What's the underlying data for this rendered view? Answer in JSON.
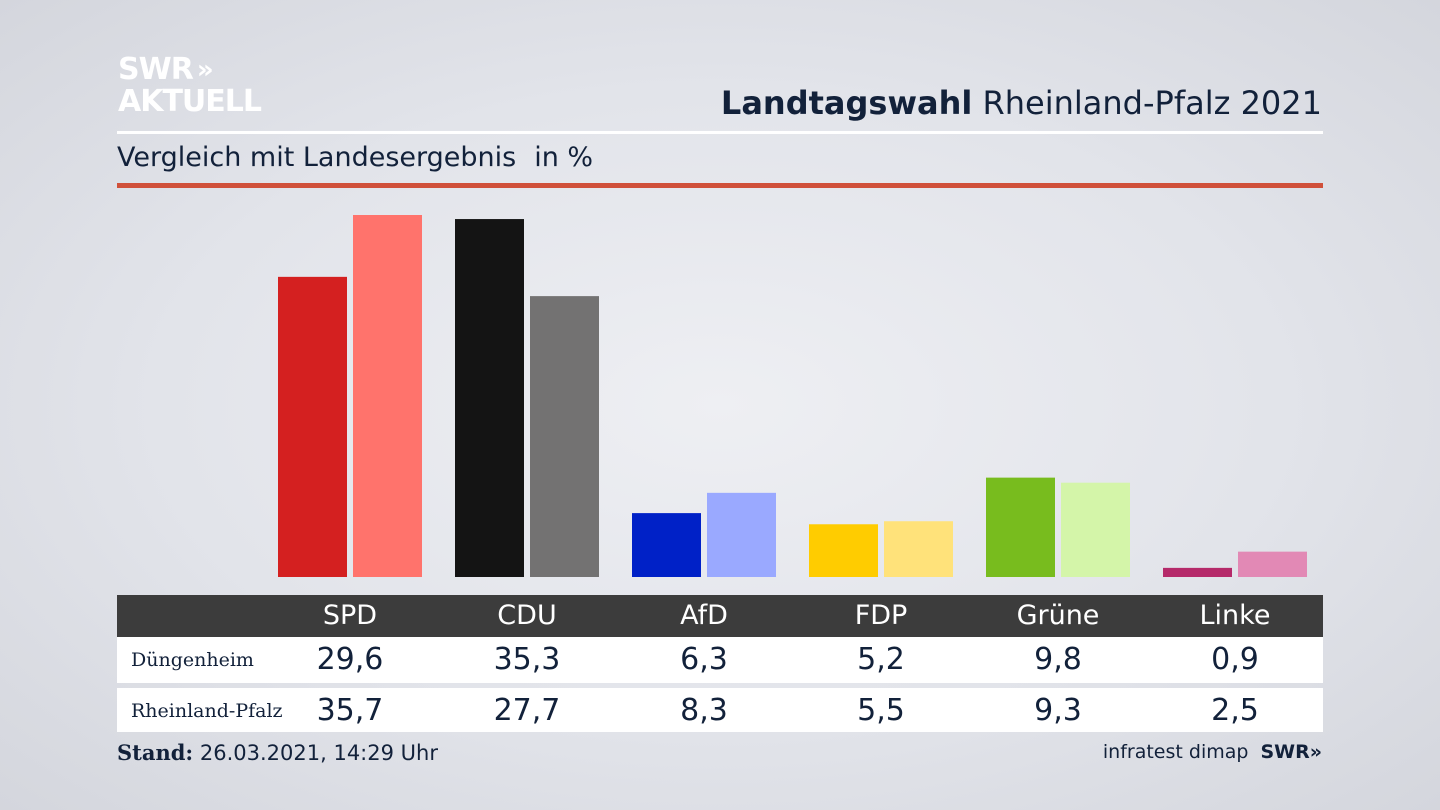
{
  "logo": {
    "line1": "SWR",
    "line2": "AKTUELL",
    "chevrons": "»"
  },
  "header": {
    "title_bold": "Landtagswahl",
    "title_rest": "Rheinland-Pfalz 2021"
  },
  "subtitle": {
    "text": "Vergleich mit Landesergebnis",
    "unit": "in %"
  },
  "table": {
    "columns": [
      "SPD",
      "CDU",
      "AfD",
      "FDP",
      "Grüne",
      "Linke"
    ],
    "rows": [
      {
        "label": "Düngenheim",
        "values": [
          "29,6",
          "35,3",
          "6,3",
          "5,2",
          "9,8",
          "0,9"
        ]
      },
      {
        "label": "Rheinland-Pfalz",
        "values": [
          "35,7",
          "27,7",
          "8,3",
          "5,5",
          "9,3",
          "2,5"
        ]
      }
    ]
  },
  "footer": {
    "stand_label": "Stand:",
    "stand_value": "26.03.2021, 14:29 Uhr",
    "source": "infratest dimap",
    "brand": "SWR",
    "brand_chevrons": "»"
  },
  "chart_data": {
    "type": "bar",
    "categories": [
      "SPD",
      "CDU",
      "AfD",
      "FDP",
      "Grüne",
      "Linke"
    ],
    "series": [
      {
        "name": "Düngenheim",
        "values": [
          29.6,
          35.3,
          6.3,
          5.2,
          9.8,
          0.9
        ]
      },
      {
        "name": "Rheinland-Pfalz",
        "values": [
          35.7,
          27.7,
          8.3,
          5.5,
          9.3,
          2.5
        ]
      }
    ],
    "colors": {
      "Düngenheim": [
        "#d42020",
        "#141414",
        "#0021c7",
        "#ffcc00",
        "#78bc1e",
        "#b52a6a"
      ],
      "Rheinland-Pfalz": [
        "#ff736c",
        "#737272",
        "#9aa9ff",
        "#ffe27a",
        "#d4f5a9",
        "#e289b5"
      ]
    },
    "ylim": [
      0,
      35.7
    ],
    "grid": false,
    "legend": "table below chart"
  }
}
